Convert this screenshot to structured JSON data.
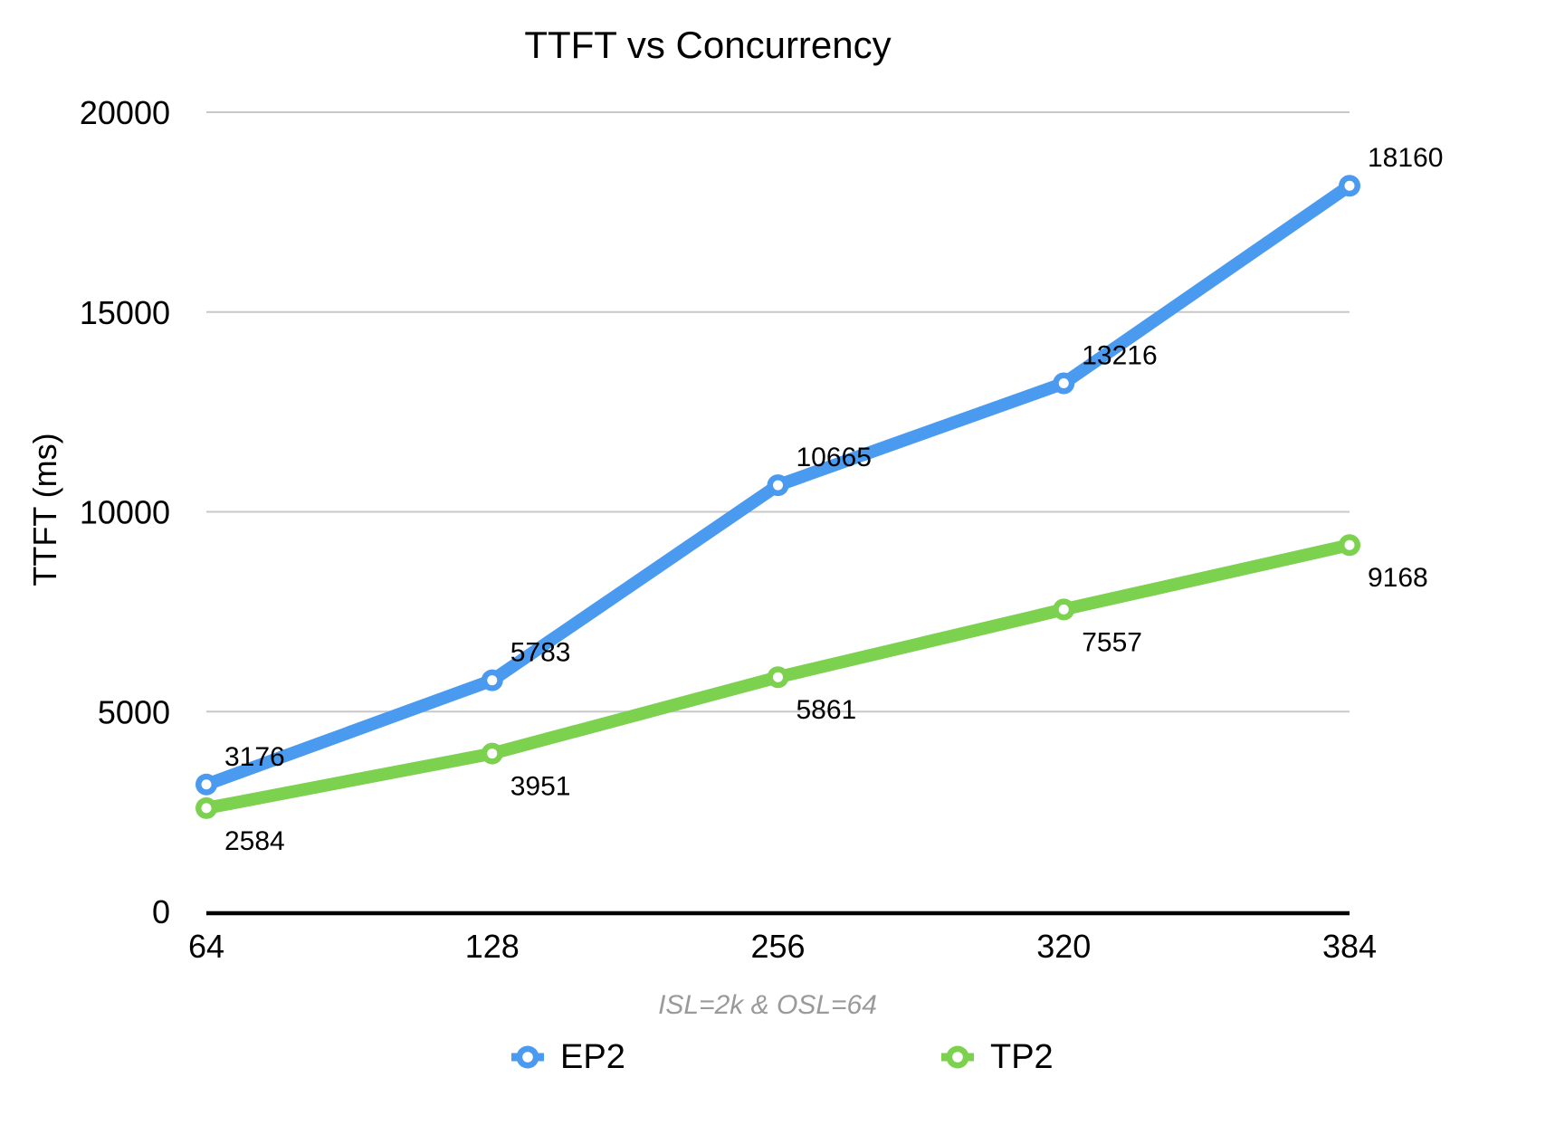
{
  "chart_data": {
    "type": "line",
    "title": "TTFT vs Concurrency",
    "ylabel": "TTFT (ms)",
    "xlabel": "ISL=2k & OSL=64",
    "categories": [
      "64",
      "128",
      "256",
      "320",
      "384"
    ],
    "yticks": [
      "0",
      "5000",
      "10000",
      "15000",
      "20000"
    ],
    "ylim": [
      0,
      20000
    ],
    "grid": true,
    "legend_position": "bottom",
    "series": [
      {
        "name": "EP2",
        "color": "#4A9AF0",
        "values": [
          3176,
          5783,
          10665,
          13216,
          18160
        ],
        "label_position": "above"
      },
      {
        "name": "TP2",
        "color": "#7CD14F",
        "values": [
          2584,
          3951,
          5861,
          7557,
          9168
        ],
        "label_position": "below"
      }
    ]
  },
  "colors": {
    "background": "#FFFFFF",
    "gridline": "#C8C8C8",
    "axis": "#000000",
    "text": "#000000",
    "subtitle": "#9A9A9A"
  }
}
